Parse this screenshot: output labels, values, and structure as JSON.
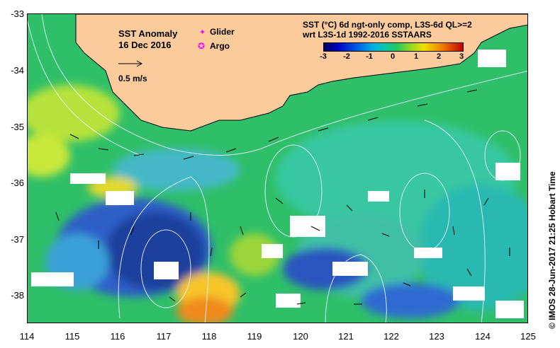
{
  "map": {
    "title": "SST Anomaly",
    "date": "16 Dec 2016",
    "scale_label": "0.5 m/s",
    "legend": {
      "glider_label": "Glider",
      "argo_label": "Argo",
      "glider_color": "#ff00ff",
      "argo_color": "#ff00ff"
    },
    "colorbar_title_line1": "SST (°C) 6d ngt-only comp, L3S-6d QL>=2",
    "colorbar_title_line2": "wrt L3S-1d 1992-2016 SSTAARS",
    "colorbar_ticks": [
      "-3",
      "-2",
      "-1",
      "0",
      "1",
      "2",
      "3"
    ],
    "colorbar_range": [
      -3,
      3
    ],
    "lat_ticks": [
      "-33",
      "-34",
      "-35",
      "-36",
      "-37",
      "-38"
    ],
    "lon_ticks": [
      "114",
      "115",
      "116",
      "117",
      "118",
      "119",
      "120",
      "121",
      "122",
      "123",
      "124",
      "125"
    ],
    "lon_range": [
      114,
      125
    ],
    "lat_range": [
      -38.5,
      -33
    ],
    "credit": "© IMOS 28-Jun-2017 21:25 Hobart Time",
    "colors": {
      "land": "#fccb9c",
      "ocean_main": "#33c866",
      "cold": "#1a4fb8",
      "warm": "#f5a623",
      "cloud": "#ffffff"
    }
  }
}
